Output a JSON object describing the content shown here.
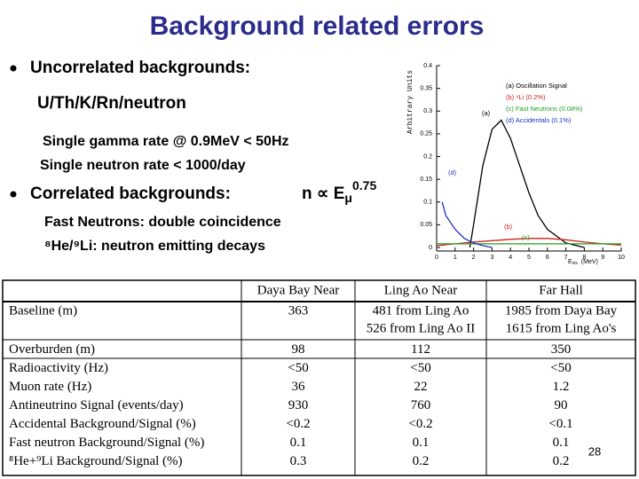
{
  "slide": {
    "title": "Background related errors",
    "bullet1": "Uncorrelated backgrounds:",
    "bullet1_sub": "U/Th/K/Rn/neutron",
    "line_gamma": "Single gamma rate @ 0.9MeV < 50Hz",
    "line_neutron": "Single neutron rate < 1000/day",
    "bullet2": "Correlated backgrounds:",
    "formula_main": "n ∝ E",
    "formula_sub": "μ",
    "formula_sup": "0.75",
    "line_fast": "Fast Neutrons: double coincidence",
    "line_heli": "⁸He/⁹Li: neutron emitting decays",
    "page_number": "28"
  },
  "plot": {
    "ylabel": "Arbitrary Units",
    "xlabel_main": "E",
    "xlabel_sub": "vis",
    "xlabel_unit": "(MeV)",
    "xlim": [
      0,
      10
    ],
    "ylim": [
      0,
      0.4
    ],
    "xticks": [
      0,
      1,
      2,
      3,
      4,
      5,
      6,
      7,
      8,
      9,
      10
    ],
    "yticks": [
      0,
      0.05,
      0.1,
      0.15,
      0.2,
      0.25,
      0.3,
      0.35,
      0.4
    ],
    "series": [
      {
        "name": "(a) Oscillation Signal",
        "label": "(a)",
        "color": "#000000",
        "x": [
          1.8,
          2,
          2.5,
          3,
          3.5,
          4,
          4.5,
          5,
          5.5,
          6,
          7,
          8
        ],
        "values": [
          0,
          0.05,
          0.18,
          0.26,
          0.28,
          0.24,
          0.18,
          0.12,
          0.07,
          0.04,
          0.01,
          0
        ]
      },
      {
        "name": "(b) ⁹Li (0.2%)",
        "label": "(b)",
        "color": "#d02020",
        "x": [
          0,
          1,
          2,
          3,
          4,
          5,
          5.5,
          6,
          7,
          8,
          9,
          10
        ],
        "values": [
          0.004,
          0.008,
          0.012,
          0.015,
          0.018,
          0.02,
          0.02,
          0.02,
          0.017,
          0.012,
          0.008,
          0.005
        ]
      },
      {
        "name": "(c) Fast Neutrons (0.08%)",
        "label": "(c)",
        "color": "#20a020",
        "x": [
          0,
          2,
          4,
          6,
          8,
          10
        ],
        "values": [
          0.008,
          0.008,
          0.008,
          0.008,
          0.008,
          0.008
        ]
      },
      {
        "name": "(d) Accidentals (0.1%)",
        "label": "(d)",
        "color": "#2030c0",
        "x": [
          0.3,
          0.5,
          1,
          1.5,
          2,
          2.5,
          3
        ],
        "values": [
          0.1,
          0.07,
          0.04,
          0.02,
          0.01,
          0.004,
          0
        ]
      }
    ]
  },
  "table": {
    "header": [
      "Daya Bay Near",
      "Ling Ao Near",
      "Far Hall"
    ],
    "rows": [
      [
        "Baseline (m)",
        [
          "363"
        ],
        [
          "481 from Ling Ao",
          "526 from Ling Ao II"
        ],
        [
          "1985 from Daya Bay",
          "1615 from Ling Ao's"
        ]
      ],
      [
        "Overburden (m)",
        [
          "98"
        ],
        [
          "112"
        ],
        [
          "350"
        ]
      ],
      [
        "Radioactivity (Hz)",
        [
          "<50"
        ],
        [
          "<50"
        ],
        [
          "<50"
        ]
      ],
      [
        "Muon rate (Hz)",
        [
          "36"
        ],
        [
          "22"
        ],
        [
          "1.2"
        ]
      ],
      [
        "Antineutrino Signal (events/day)",
        [
          "930"
        ],
        [
          "760"
        ],
        [
          "90"
        ]
      ],
      [
        "Accidental Background/Signal (%)",
        [
          "<0.2"
        ],
        [
          "<0.2"
        ],
        [
          "<0.1"
        ]
      ],
      [
        "Fast neutron Background/Signal (%)",
        [
          "0.1"
        ],
        [
          "0.1"
        ],
        [
          "0.1"
        ]
      ],
      [
        "⁸He+⁹Li Background/Signal (%)",
        [
          "0.3"
        ],
        [
          "0.2"
        ],
        [
          "0.2"
        ]
      ]
    ]
  }
}
